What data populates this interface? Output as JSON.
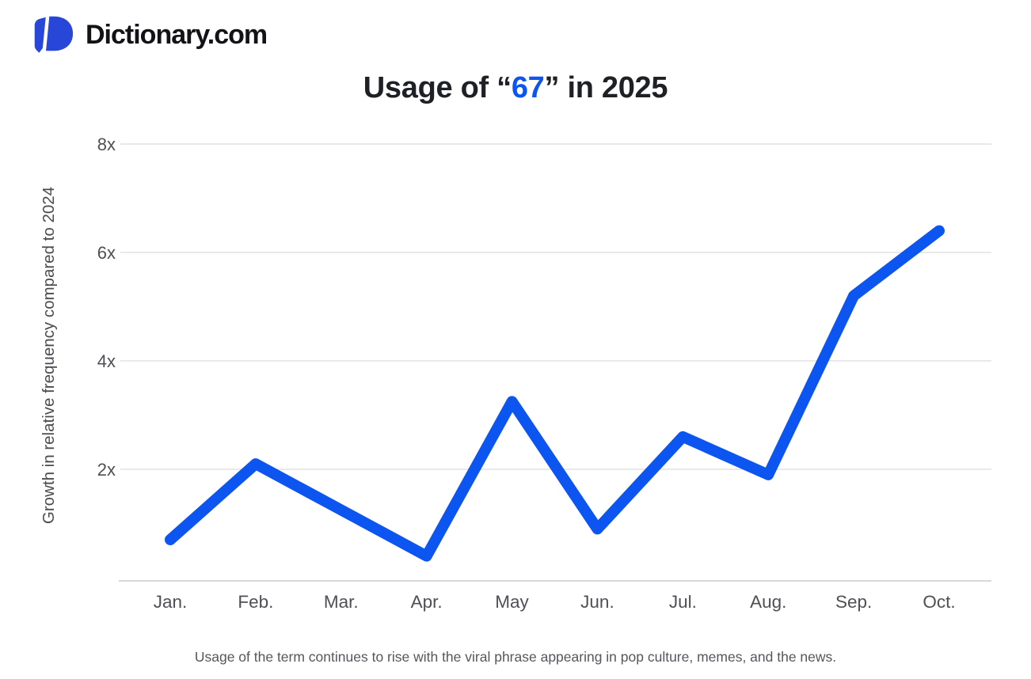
{
  "header": {
    "logo_text": "Dictionary.com",
    "logo_icon": "dictionary-d-icon"
  },
  "title": {
    "prefix": "Usage of “",
    "term": "67",
    "suffix": "” in 2025",
    "full": "Usage of “67” in 2025"
  },
  "colors": {
    "accent_blue": "#0d55f0",
    "logo_blue": "#2847d8",
    "gridline": "#e9e9eb",
    "axis_line": "#d8d8da",
    "tick_text": "#4f5054",
    "title_text": "#1f2025",
    "caption_text": "#56575c"
  },
  "chart_data": {
    "type": "line",
    "title": "Usage of “67” in 2025",
    "x": [
      "Jan.",
      "Feb.",
      "Mar.",
      "Apr.",
      "May",
      "Jun.",
      "Jul.",
      "Aug.",
      "Sep.",
      "Oct."
    ],
    "series": [
      {
        "name": "Growth in relative frequency vs 2024",
        "values": [
          0.7,
          2.1,
          1.25,
          0.4,
          3.25,
          0.9,
          2.6,
          1.9,
          5.2,
          6.4
        ]
      }
    ],
    "xlabel": "",
    "ylabel": "Growth in relative frequency compared to 2024",
    "yticks": [
      2,
      4,
      6,
      8
    ],
    "ytick_labels": [
      "2x",
      "4x",
      "6x",
      "8x"
    ],
    "ylim": [
      0,
      8.6
    ],
    "grid": true,
    "legend_position": "none",
    "line_color": "#0d55f0",
    "line_width": 14
  },
  "caption": "Usage of the term continues to rise with the viral phrase appearing in pop culture, memes, and the news."
}
